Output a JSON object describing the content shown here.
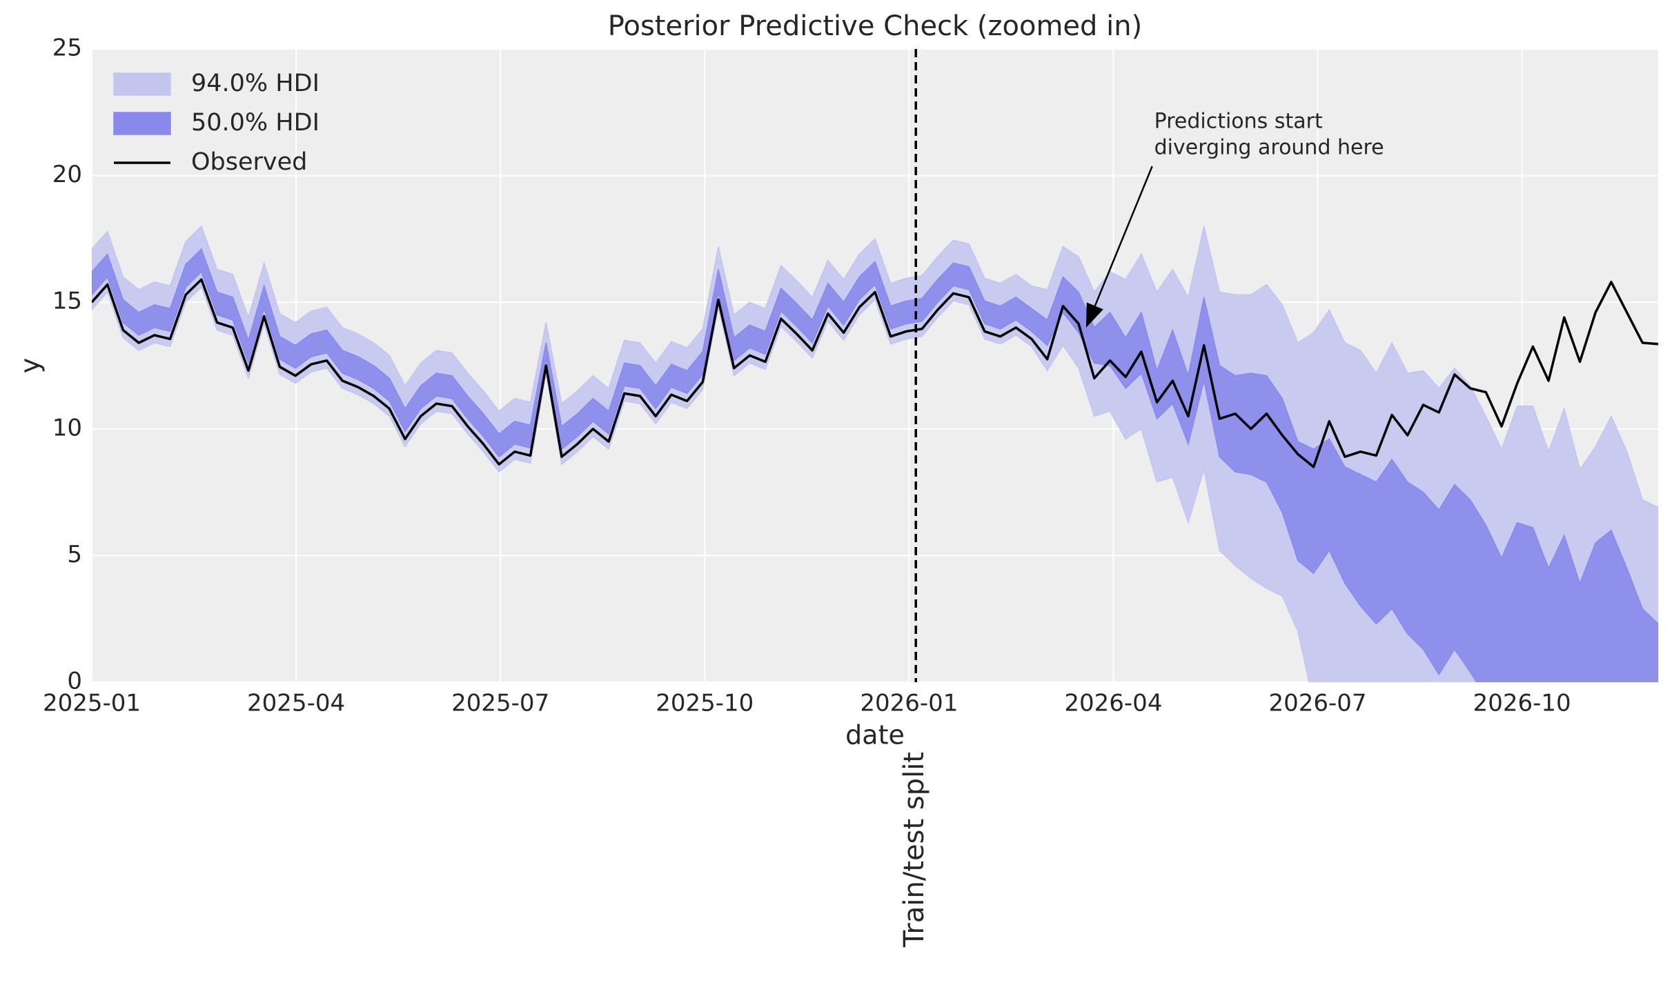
{
  "chart_data": {
    "type": "line",
    "title": "Posterior Predictive Check (zoomed in)",
    "x_label": "date",
    "y_label": "y",
    "grid": true,
    "legend": "upper left",
    "x": [
      0,
      0.23,
      0.46,
      0.69,
      0.92,
      1.15,
      1.38,
      1.61,
      1.84,
      2.07,
      2.3,
      2.53,
      2.76,
      2.99,
      3.22,
      3.45,
      3.68,
      3.91,
      4.14,
      4.37,
      4.6,
      4.83,
      5.06,
      5.29,
      5.52,
      5.75,
      5.98,
      6.21,
      6.44,
      6.67,
      6.9,
      7.13,
      7.36,
      7.59,
      7.82,
      8.05,
      8.28,
      8.51,
      8.74,
      8.97,
      9.2,
      9.43,
      9.66,
      9.89,
      10.12,
      10.35,
      10.58,
      10.81,
      11.04,
      11.27,
      11.5,
      11.73,
      11.96,
      12.19,
      12.42,
      12.65,
      12.88,
      13.11,
      13.34,
      13.57,
      13.8,
      14.03,
      14.26,
      14.49,
      14.72,
      14.95,
      15.18,
      15.41,
      15.64,
      15.87,
      16.1,
      16.33,
      16.56,
      16.79,
      17.02,
      17.25,
      17.48,
      17.71,
      17.94,
      18.17,
      18.4,
      18.63,
      18.86,
      19.09,
      19.32,
      19.55,
      19.78,
      20.01,
      20.24,
      20.47,
      20.7,
      20.93,
      21.16,
      21.39,
      21.62,
      21.85,
      22.08,
      22.31,
      22.54,
      22.77,
      23.0
    ],
    "xlim": [
      0,
      23
    ],
    "xticks": [
      {
        "value": 0,
        "label": "2025-01"
      },
      {
        "value": 3,
        "label": "2025-04"
      },
      {
        "value": 6,
        "label": "2025-07"
      },
      {
        "value": 9,
        "label": "2025-10"
      },
      {
        "value": 12,
        "label": "2026-01"
      },
      {
        "value": 15,
        "label": "2026-04"
      },
      {
        "value": 18,
        "label": "2026-07"
      },
      {
        "value": 21,
        "label": "2026-10"
      }
    ],
    "ylim": [
      0,
      25
    ],
    "yticks": [
      0,
      5,
      10,
      15,
      20,
      25
    ],
    "series": [
      {
        "name": "94.0% HDI",
        "type": "band",
        "color": "#c4c5ef",
        "lower": [
          14.7,
          15.4,
          13.6,
          13.1,
          13.4,
          13.25,
          15.0,
          15.6,
          13.9,
          13.7,
          12.0,
          14.15,
          12.15,
          11.8,
          12.25,
          12.4,
          11.6,
          11.35,
          11.0,
          10.5,
          9.3,
          10.2,
          10.7,
          10.6,
          9.8,
          9.1,
          8.3,
          8.8,
          8.65,
          12.2,
          8.6,
          9.1,
          9.7,
          9.2,
          11.1,
          11.0,
          10.2,
          11.05,
          10.8,
          11.55,
          14.8,
          12.1,
          12.6,
          12.35,
          14.05,
          13.45,
          12.8,
          14.25,
          13.5,
          14.5,
          15.1,
          13.35,
          13.55,
          13.65,
          14.4,
          15.05,
          14.9,
          13.55,
          13.35,
          13.7,
          13.25,
          12.3,
          13.3,
          12.4,
          10.5,
          10.7,
          9.6,
          10.0,
          7.9,
          8.1,
          6.3,
          8.4,
          5.2,
          4.6,
          4.1,
          3.7,
          3.4,
          2.0,
          -0.8,
          -1.0,
          -1.5,
          -1.8,
          -2.0,
          -1.5,
          -2.2,
          -2.5,
          -3.0,
          -2.5,
          -3.0,
          -3.5,
          -4.0,
          -3.5,
          -4.0,
          -4.5,
          -4.0,
          -5.0,
          -4.5,
          -4.3,
          -5.0,
          -5.5,
          -6.0
        ],
        "upper": [
          17.1,
          17.8,
          16.0,
          15.5,
          15.8,
          15.65,
          17.4,
          18.0,
          16.3,
          16.1,
          14.4,
          16.55,
          14.55,
          14.2,
          14.65,
          14.8,
          14.0,
          13.75,
          13.4,
          12.9,
          11.7,
          12.6,
          13.1,
          13.0,
          12.2,
          11.5,
          10.7,
          11.2,
          11.05,
          14.2,
          11.0,
          11.5,
          12.1,
          11.6,
          13.5,
          13.4,
          12.6,
          13.45,
          13.2,
          13.95,
          17.2,
          14.5,
          15.0,
          14.75,
          16.45,
          15.85,
          15.2,
          16.65,
          15.9,
          16.9,
          17.5,
          15.75,
          15.95,
          16.05,
          16.8,
          17.45,
          17.3,
          15.95,
          15.75,
          16.1,
          15.65,
          15.5,
          17.2,
          16.8,
          15.4,
          16.2,
          15.9,
          16.9,
          15.4,
          16.3,
          15.2,
          18.0,
          15.4,
          15.3,
          15.3,
          15.7,
          14.9,
          13.4,
          13.8,
          14.7,
          13.4,
          13.1,
          12.2,
          13.4,
          12.2,
          12.3,
          11.6,
          12.4,
          11.7,
          10.5,
          9.2,
          10.9,
          10.9,
          9.1,
          10.8,
          8.4,
          9.3,
          10.5,
          9.1,
          7.2,
          6.9
        ]
      },
      {
        "name": "50.0% HDI",
        "type": "band",
        "color": "#8889eb",
        "lower": [
          15.3,
          16.0,
          14.2,
          13.7,
          14.0,
          13.85,
          15.6,
          16.2,
          14.5,
          14.3,
          12.6,
          14.75,
          12.75,
          12.4,
          12.85,
          13.0,
          12.2,
          11.95,
          11.6,
          11.1,
          9.9,
          10.8,
          11.3,
          11.2,
          10.4,
          9.7,
          8.9,
          9.4,
          9.25,
          12.8,
          9.2,
          9.7,
          10.3,
          9.8,
          11.7,
          11.6,
          10.8,
          11.65,
          11.4,
          12.15,
          15.4,
          12.7,
          13.2,
          12.95,
          14.65,
          14.05,
          13.4,
          14.85,
          14.1,
          15.1,
          15.7,
          13.95,
          14.15,
          14.25,
          15.0,
          15.65,
          15.5,
          14.15,
          13.95,
          14.3,
          13.85,
          13.3,
          14.6,
          13.8,
          12.6,
          12.5,
          11.6,
          12.2,
          10.4,
          11.0,
          9.4,
          11.9,
          8.9,
          8.3,
          8.2,
          7.9,
          6.7,
          4.8,
          4.3,
          5.2,
          3.9,
          3.0,
          2.3,
          2.9,
          1.9,
          1.3,
          0.3,
          1.3,
          0.4,
          -0.6,
          -1.0,
          -0.5,
          -0.8,
          -1.2,
          -0.5,
          -1.5,
          -0.8,
          -0.6,
          -1.5,
          -2.0,
          -2.3
        ],
        "upper": [
          16.2,
          16.9,
          15.1,
          14.6,
          14.9,
          14.75,
          16.5,
          17.1,
          15.4,
          15.2,
          13.5,
          15.65,
          13.65,
          13.3,
          13.75,
          13.9,
          13.1,
          12.85,
          12.5,
          12.0,
          10.8,
          11.7,
          12.2,
          12.1,
          11.3,
          10.6,
          9.8,
          10.3,
          10.15,
          13.4,
          10.1,
          10.6,
          11.2,
          10.7,
          12.6,
          12.5,
          11.7,
          12.55,
          12.3,
          13.05,
          16.3,
          13.6,
          14.1,
          13.85,
          15.55,
          14.95,
          14.3,
          15.75,
          15.0,
          16.0,
          16.6,
          14.85,
          15.05,
          15.15,
          15.9,
          16.55,
          16.4,
          15.05,
          14.85,
          15.2,
          14.75,
          14.3,
          16.0,
          15.4,
          14.0,
          14.6,
          13.6,
          14.6,
          12.3,
          13.9,
          12.1,
          15.2,
          12.5,
          12.1,
          12.2,
          12.1,
          11.2,
          9.5,
          9.2,
          9.6,
          8.5,
          8.2,
          7.9,
          8.8,
          7.9,
          7.5,
          6.8,
          7.8,
          7.2,
          6.2,
          4.9,
          6.3,
          6.1,
          4.5,
          5.8,
          3.9,
          5.5,
          6.0,
          4.5,
          2.9,
          2.3
        ]
      },
      {
        "name": "Observed",
        "type": "line",
        "color": "#000000",
        "values": [
          15.0,
          15.7,
          13.9,
          13.4,
          13.7,
          13.55,
          15.3,
          15.9,
          14.2,
          14.0,
          12.3,
          14.45,
          12.45,
          12.1,
          12.55,
          12.7,
          11.9,
          11.65,
          11.3,
          10.8,
          9.6,
          10.5,
          11.0,
          10.9,
          10.1,
          9.4,
          8.6,
          9.1,
          8.95,
          12.5,
          8.9,
          9.4,
          10.0,
          9.5,
          11.4,
          11.3,
          10.5,
          11.35,
          11.1,
          11.85,
          15.1,
          12.4,
          12.9,
          12.65,
          14.35,
          13.75,
          13.1,
          14.55,
          13.8,
          14.8,
          15.4,
          13.65,
          13.85,
          13.95,
          14.7,
          15.35,
          15.2,
          13.85,
          13.65,
          14.0,
          13.55,
          12.75,
          14.85,
          14.15,
          12.0,
          12.7,
          12.05,
          13.05,
          11.05,
          11.9,
          10.5,
          13.3,
          10.4,
          10.6,
          10.0,
          10.6,
          9.75,
          9.0,
          8.5,
          10.3,
          8.9,
          9.1,
          8.95,
          10.55,
          9.75,
          10.95,
          10.65,
          12.15,
          11.6,
          11.45,
          10.1,
          11.8,
          13.25,
          11.9,
          14.4,
          12.65,
          14.6,
          15.8,
          14.6,
          13.4,
          13.35
        ]
      }
    ],
    "split": {
      "x": 12.1,
      "label": "Train/test split"
    },
    "annotation": {
      "lines": [
        "Predictions start",
        "diverging around here"
      ],
      "xy": [
        14.6,
        14.0
      ],
      "xytext": [
        15.6,
        22.6
      ]
    }
  }
}
